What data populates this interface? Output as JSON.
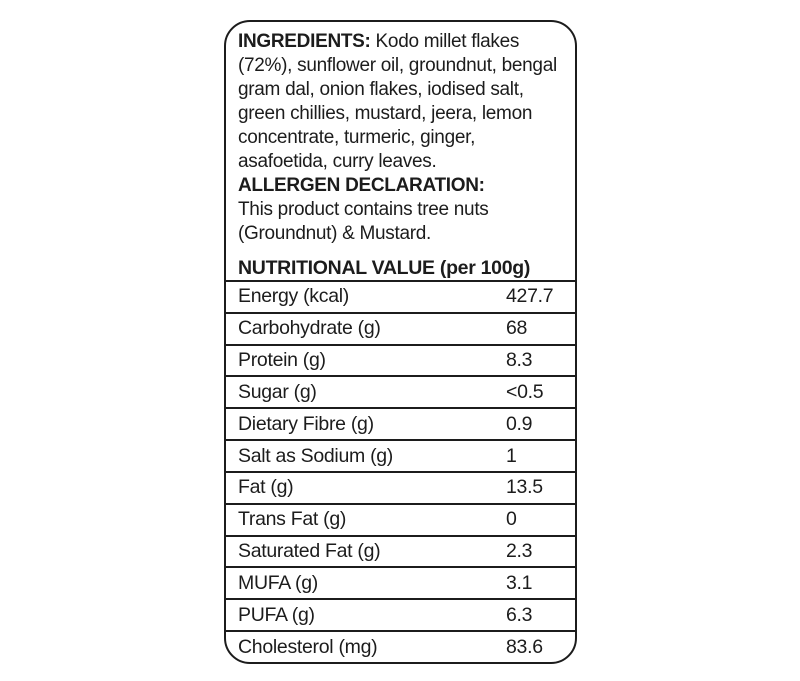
{
  "colors": {
    "ink": "#1c1c1c",
    "background": "#ffffff"
  },
  "ingredients": {
    "heading": "INGREDIENTS:",
    "text": " Kodo millet flakes (72%), sunflower oil, groundnut, bengal gram dal, onion flakes, iodised salt, green chillies, mustard, jeera, lemon concentrate, turmeric, ginger, asafoetida, curry leaves."
  },
  "allergen": {
    "heading": "ALLERGEN DECLARATION:",
    "text": "This product contains tree nuts (Groundnut) & Mustard."
  },
  "nutrition": {
    "heading": "NUTRITIONAL VALUE (per 100g)",
    "rows": [
      {
        "name": "Energy (kcal)",
        "value": "427.7"
      },
      {
        "name": "Carbohydrate (g)",
        "value": "68"
      },
      {
        "name": "Protein (g)",
        "value": "8.3"
      },
      {
        "name": "Sugar (g)",
        "value": "<0.5"
      },
      {
        "name": "Dietary Fibre (g)",
        "value": "0.9"
      },
      {
        "name": "Salt as Sodium (g)",
        "value": "1"
      },
      {
        "name": "Fat (g)",
        "value": "13.5"
      },
      {
        "name": "Trans Fat (g)",
        "value": "0"
      },
      {
        "name": "Saturated Fat (g)",
        "value": "2.3"
      },
      {
        "name": "MUFA (g)",
        "value": "3.1"
      },
      {
        "name": "PUFA (g)",
        "value": "6.3"
      },
      {
        "name": "Cholesterol (mg)",
        "value": "83.6"
      }
    ]
  }
}
